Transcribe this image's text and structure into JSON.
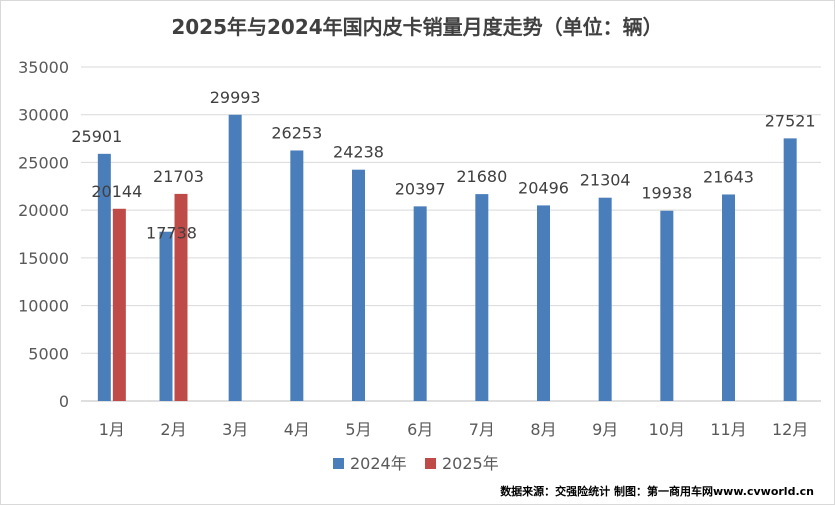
{
  "chart_data": {
    "type": "bar",
    "title": "2025年与2024年国内皮卡销量月度走势（单位：辆）",
    "categories": [
      "1月",
      "2月",
      "3月",
      "4月",
      "5月",
      "6月",
      "7月",
      "8月",
      "9月",
      "10月",
      "11月",
      "12月"
    ],
    "series": [
      {
        "name": "2024年",
        "color": "#4a7ebb",
        "values": [
          25901,
          17738,
          29993,
          26253,
          24238,
          20397,
          21680,
          20496,
          21304,
          19938,
          21643,
          27521
        ]
      },
      {
        "name": "2025年",
        "color": "#be4b48",
        "values": [
          20144,
          21703,
          null,
          null,
          null,
          null,
          null,
          null,
          null,
          null,
          null,
          null
        ]
      }
    ],
    "ylim": [
      0,
      35000
    ],
    "yticks": [
      0,
      5000,
      10000,
      15000,
      20000,
      25000,
      30000,
      35000
    ],
    "grid": true,
    "legend": "bottom",
    "source": "数据来源：交强险统计 制图：第一商用车网www.cvworld.cn"
  }
}
